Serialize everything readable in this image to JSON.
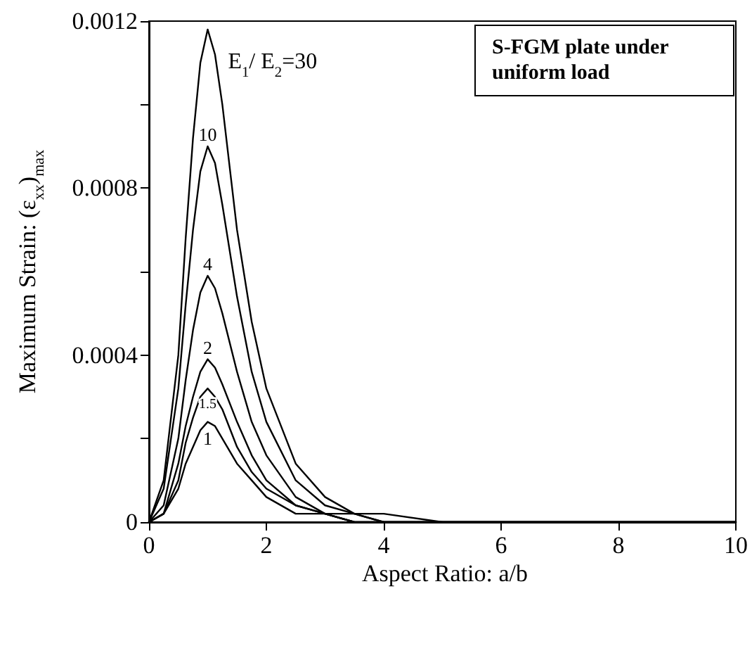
{
  "chart_data": {
    "type": "line",
    "xlabel": "Aspect Ratio: a/b",
    "ylabel": "Maximum Strain: (ε$_{xx}$)$_{max}$",
    "annotations": [
      "S-FGM plate under uniform load"
    ],
    "x": [
      0,
      0.25,
      0.5,
      0.625,
      0.75,
      0.875,
      1,
      1.125,
      1.25,
      1.5,
      1.75,
      2,
      2.5,
      3,
      3.5,
      4,
      5,
      6,
      8,
      10
    ],
    "series": [
      {
        "name": "E$_{1}$/ E$_{2}$=30",
        "color": "#000000",
        "values": [
          0,
          0.0001,
          0.0004,
          0.00068,
          0.00092,
          0.0011,
          0.00118,
          0.00112,
          0.001,
          0.0007,
          0.00048,
          0.00032,
          0.00014,
          6e-05,
          2e-05,
          2e-05,
          0,
          0,
          0,
          0
        ]
      },
      {
        "name": "10",
        "color": "#000000",
        "values": [
          0,
          8e-05,
          0.00032,
          0.00052,
          0.0007,
          0.00084,
          0.0009,
          0.00086,
          0.00076,
          0.00054,
          0.00036,
          0.00024,
          0.0001,
          4e-05,
          2e-05,
          0,
          0,
          0,
          0,
          0
        ]
      },
      {
        "name": "4",
        "color": "#000000",
        "values": [
          0,
          4e-05,
          0.0002,
          0.00034,
          0.00046,
          0.00055,
          0.00059,
          0.00056,
          0.0005,
          0.00036,
          0.00024,
          0.00016,
          6e-05,
          2e-05,
          2e-05,
          0,
          0,
          0,
          0,
          0
        ]
      },
      {
        "name": "2",
        "color": "#000000",
        "values": [
          0,
          2e-05,
          0.00014,
          0.00023,
          0.0003,
          0.00036,
          0.00039,
          0.00037,
          0.00033,
          0.00024,
          0.00016,
          0.0001,
          4e-05,
          2e-05,
          0,
          0,
          0,
          0,
          0,
          0
        ]
      },
      {
        "name": "1.5",
        "color": "#000000",
        "values": [
          0,
          2e-05,
          0.0001,
          0.00019,
          0.00025,
          0.0003,
          0.00032,
          0.0003,
          0.00027,
          0.00018,
          0.00012,
          8e-05,
          4e-05,
          2e-05,
          0,
          0,
          0,
          0,
          0,
          0
        ]
      },
      {
        "name": "1",
        "color": "#000000",
        "values": [
          0,
          2e-05,
          8e-05,
          0.00014,
          0.00018,
          0.00022,
          0.00024,
          0.00023,
          0.0002,
          0.00014,
          0.0001,
          6e-05,
          2e-05,
          2e-05,
          0,
          0,
          0,
          0,
          0,
          0
        ]
      }
    ],
    "xlim": [
      0,
      10
    ],
    "xticks": [
      0,
      2,
      4,
      6,
      8,
      10
    ],
    "ylim": [
      0,
      0.0012
    ],
    "yticks": [
      0,
      {
        "value": 0.0002,
        "label": null
      },
      0.0004,
      {
        "value": 0.0006,
        "label": null
      },
      0.0008,
      {
        "value": 0.001,
        "label": null
      },
      0.0012
    ],
    "grid": false,
    "legend": false,
    "marker": "none",
    "line_style": "solid"
  }
}
